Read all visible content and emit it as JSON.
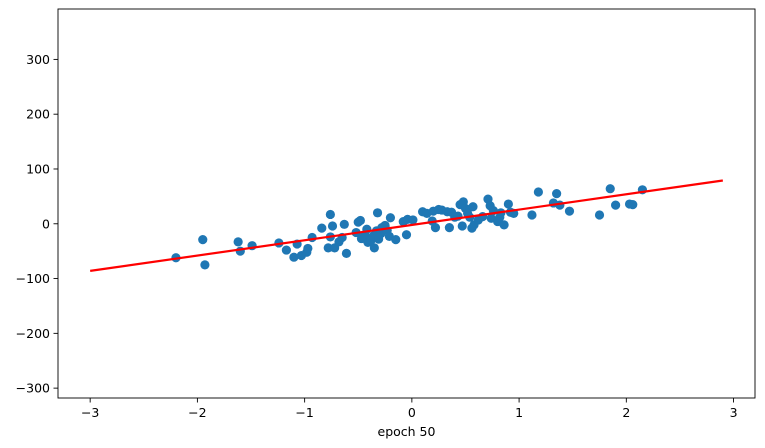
{
  "chart_data": {
    "type": "scatter",
    "title": "",
    "xlabel": "epoch 50",
    "ylabel": "",
    "xlim": [
      -3.3,
      3.2
    ],
    "ylim": [
      -318,
      392
    ],
    "xticks": [
      -3,
      -2,
      -1,
      0,
      1,
      2,
      3
    ],
    "xtick_labels": [
      "−3",
      "−2",
      "−1",
      "0",
      "1",
      "2",
      "3"
    ],
    "yticks": [
      -300,
      -200,
      -100,
      0,
      100,
      200,
      300
    ],
    "ytick_labels": [
      "−300",
      "−200",
      "−100",
      "0",
      "100",
      "200",
      "300"
    ],
    "grid": false,
    "series": [
      {
        "kind": "scatter",
        "color": "#1f77b4",
        "points": [
          [
            -2.2,
            -62
          ],
          [
            -1.95,
            -29
          ],
          [
            -1.93,
            -75
          ],
          [
            -1.62,
            -33
          ],
          [
            -1.6,
            -50
          ],
          [
            -1.49,
            -40
          ],
          [
            -1.24,
            -35
          ],
          [
            -1.17,
            -48
          ],
          [
            -1.1,
            -61
          ],
          [
            -1.07,
            -37
          ],
          [
            -1.03,
            -58
          ],
          [
            -0.98,
            -52
          ],
          [
            -0.97,
            -45
          ],
          [
            -0.93,
            -25
          ],
          [
            -0.84,
            -8
          ],
          [
            -0.78,
            -44
          ],
          [
            -0.76,
            -24
          ],
          [
            -0.76,
            17
          ],
          [
            -0.74,
            -4
          ],
          [
            -0.72,
            -44
          ],
          [
            -0.68,
            -33
          ],
          [
            -0.65,
            -25
          ],
          [
            -0.63,
            -1
          ],
          [
            -0.61,
            -54
          ],
          [
            -0.52,
            -16
          ],
          [
            -0.5,
            3
          ],
          [
            -0.48,
            6
          ],
          [
            -0.47,
            -27
          ],
          [
            -0.44,
            -20
          ],
          [
            -0.42,
            -10
          ],
          [
            -0.41,
            -34
          ],
          [
            -0.38,
            -30
          ],
          [
            -0.36,
            -22
          ],
          [
            -0.35,
            -44
          ],
          [
            -0.33,
            -13
          ],
          [
            -0.32,
            20
          ],
          [
            -0.31,
            -28
          ],
          [
            -0.29,
            -18
          ],
          [
            -0.28,
            -7
          ],
          [
            -0.25,
            -3
          ],
          [
            -0.23,
            -12
          ],
          [
            -0.21,
            -23
          ],
          [
            -0.2,
            11
          ],
          [
            -0.15,
            -29
          ],
          [
            -0.08,
            4
          ],
          [
            -0.05,
            -20
          ],
          [
            -0.04,
            8
          ],
          [
            0.01,
            7
          ],
          [
            0.1,
            22
          ],
          [
            0.14,
            19
          ],
          [
            0.19,
            5
          ],
          [
            0.2,
            23
          ],
          [
            0.22,
            -7
          ],
          [
            0.25,
            26
          ],
          [
            0.28,
            25
          ],
          [
            0.33,
            22
          ],
          [
            0.35,
            -7
          ],
          [
            0.37,
            21
          ],
          [
            0.4,
            12
          ],
          [
            0.43,
            14
          ],
          [
            0.45,
            35
          ],
          [
            0.47,
            -4
          ],
          [
            0.48,
            40
          ],
          [
            0.5,
            28
          ],
          [
            0.52,
            19
          ],
          [
            0.54,
            12
          ],
          [
            0.56,
            -8
          ],
          [
            0.57,
            31
          ],
          [
            0.58,
            -2
          ],
          [
            0.62,
            7
          ],
          [
            0.66,
            13
          ],
          [
            0.71,
            45
          ],
          [
            0.73,
            33
          ],
          [
            0.74,
            10
          ],
          [
            0.76,
            24
          ],
          [
            0.8,
            4
          ],
          [
            0.82,
            12
          ],
          [
            0.83,
            20
          ],
          [
            0.86,
            -2
          ],
          [
            0.9,
            36
          ],
          [
            0.92,
            21
          ],
          [
            0.95,
            19
          ],
          [
            1.12,
            16
          ],
          [
            1.18,
            58
          ],
          [
            1.32,
            38
          ],
          [
            1.35,
            55
          ],
          [
            1.38,
            34
          ],
          [
            1.47,
            23
          ],
          [
            1.75,
            16
          ],
          [
            1.85,
            64
          ],
          [
            1.9,
            34
          ],
          [
            2.03,
            36
          ],
          [
            2.06,
            35
          ],
          [
            2.15,
            62
          ]
        ]
      },
      {
        "kind": "line",
        "color": "#ff0000",
        "x": [
          -3.0,
          2.9
        ],
        "y": [
          -86,
          79
        ]
      }
    ]
  }
}
